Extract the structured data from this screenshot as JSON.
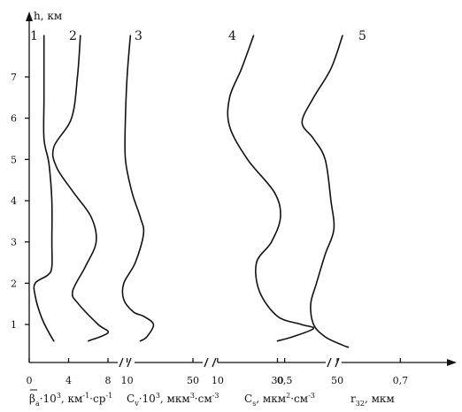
{
  "chart_data": {
    "type": "line",
    "y_axis": {
      "label": "h, км",
      "ticks": [
        1,
        2,
        3,
        4,
        5,
        6,
        7
      ],
      "range": [
        0.3,
        8.2
      ]
    },
    "panels": [
      {
        "xlabel_parts": [
          "β",
          "a",
          "·10",
          "3",
          ", км",
          "-1",
          "·ср",
          "-1"
        ],
        "ticks": [
          "0",
          "4",
          "8"
        ],
        "tick_values": [
          0,
          4,
          8
        ],
        "xlim": [
          0,
          8
        ],
        "series": [
          {
            "label": "1",
            "points": [
              [
                1.5,
                8.0
              ],
              [
                1.5,
                6.5
              ],
              [
                1.5,
                5.5
              ],
              [
                2.0,
                4.9
              ],
              [
                2.3,
                4.0
              ],
              [
                2.3,
                3.0
              ],
              [
                2.3,
                2.4
              ],
              [
                1.9,
                2.2
              ],
              [
                0.6,
                2.0
              ],
              [
                0.6,
                1.7
              ],
              [
                1.2,
                1.2
              ],
              [
                2.0,
                0.8
              ],
              [
                2.5,
                0.6
              ]
            ]
          },
          {
            "label": "2",
            "points": [
              [
                5.2,
                8.0
              ],
              [
                4.9,
                7.0
              ],
              [
                4.3,
                6.0
              ],
              [
                2.5,
                5.3
              ],
              [
                2.8,
                4.8
              ],
              [
                4.5,
                4.2
              ],
              [
                6.3,
                3.6
              ],
              [
                6.8,
                3.0
              ],
              [
                5.7,
                2.4
              ],
              [
                4.4,
                1.8
              ],
              [
                5.0,
                1.5
              ],
              [
                7.0,
                1.0
              ],
              [
                8.0,
                0.8
              ],
              [
                6.0,
                0.6
              ]
            ]
          }
        ]
      },
      {
        "xlabel_parts": [
          "C",
          "v",
          "·10",
          "3",
          ", мкм",
          "3",
          "·см",
          "-3"
        ],
        "ticks": [
          "10",
          "50"
        ],
        "tick_values": [
          10,
          50
        ],
        "xlim": [
          0,
          50
        ],
        "series": [
          {
            "label": "3",
            "points": [
              [
                12,
                8.0
              ],
              [
                10,
                7.0
              ],
              [
                9,
                6.0
              ],
              [
                9,
                5.0
              ],
              [
                13,
                4.2
              ],
              [
                18,
                3.6
              ],
              [
                20,
                3.2
              ],
              [
                15,
                2.5
              ],
              [
                8,
                2.0
              ],
              [
                8,
                1.6
              ],
              [
                14,
                1.3
              ],
              [
                20,
                1.2
              ],
              [
                26,
                1.0
              ],
              [
                22,
                0.7
              ],
              [
                18,
                0.6
              ]
            ]
          }
        ]
      },
      {
        "xlabel_parts": [
          "C",
          "s",
          ", мкм",
          "2",
          "·см",
          "-3"
        ],
        "ticks": [
          "10",
          "30",
          "50"
        ],
        "tick_values": [
          10,
          30,
          50
        ],
        "xlim": [
          5,
          55
        ],
        "series": [
          {
            "label": "4",
            "points": [
              [
                22,
                8.0
              ],
              [
                18,
                7.2
              ],
              [
                14,
                6.5
              ],
              [
                14,
                5.8
              ],
              [
                20,
                5.0
              ],
              [
                29,
                4.2
              ],
              [
                31,
                3.6
              ],
              [
                28,
                3.0
              ],
              [
                23,
                2.5
              ],
              [
                24,
                1.8
              ],
              [
                30,
                1.2
              ],
              [
                38,
                1.0
              ],
              [
                42,
                0.9
              ],
              [
                35,
                0.7
              ],
              [
                30,
                0.6
              ]
            ]
          }
        ]
      },
      {
        "xlabel_parts": [
          "r",
          "32",
          ", мкм"
        ],
        "ticks": [
          "0,5",
          "0,7"
        ],
        "tick_values": [
          0.5,
          0.7
        ],
        "xlim": [
          0.45,
          0.75
        ],
        "series": [
          {
            "label": "5",
            "points": [
              [
                0.6,
                8.0
              ],
              [
                0.58,
                7.2
              ],
              [
                0.55,
                6.5
              ],
              [
                0.53,
                5.9
              ],
              [
                0.55,
                5.5
              ],
              [
                0.57,
                5.0
              ],
              [
                0.58,
                4.0
              ],
              [
                0.585,
                3.3
              ],
              [
                0.57,
                2.7
              ],
              [
                0.555,
                2.0
              ],
              [
                0.545,
                1.5
              ],
              [
                0.55,
                1.0
              ],
              [
                0.57,
                0.7
              ],
              [
                0.6,
                0.5
              ],
              [
                0.61,
                0.45
              ]
            ]
          }
        ]
      }
    ]
  }
}
